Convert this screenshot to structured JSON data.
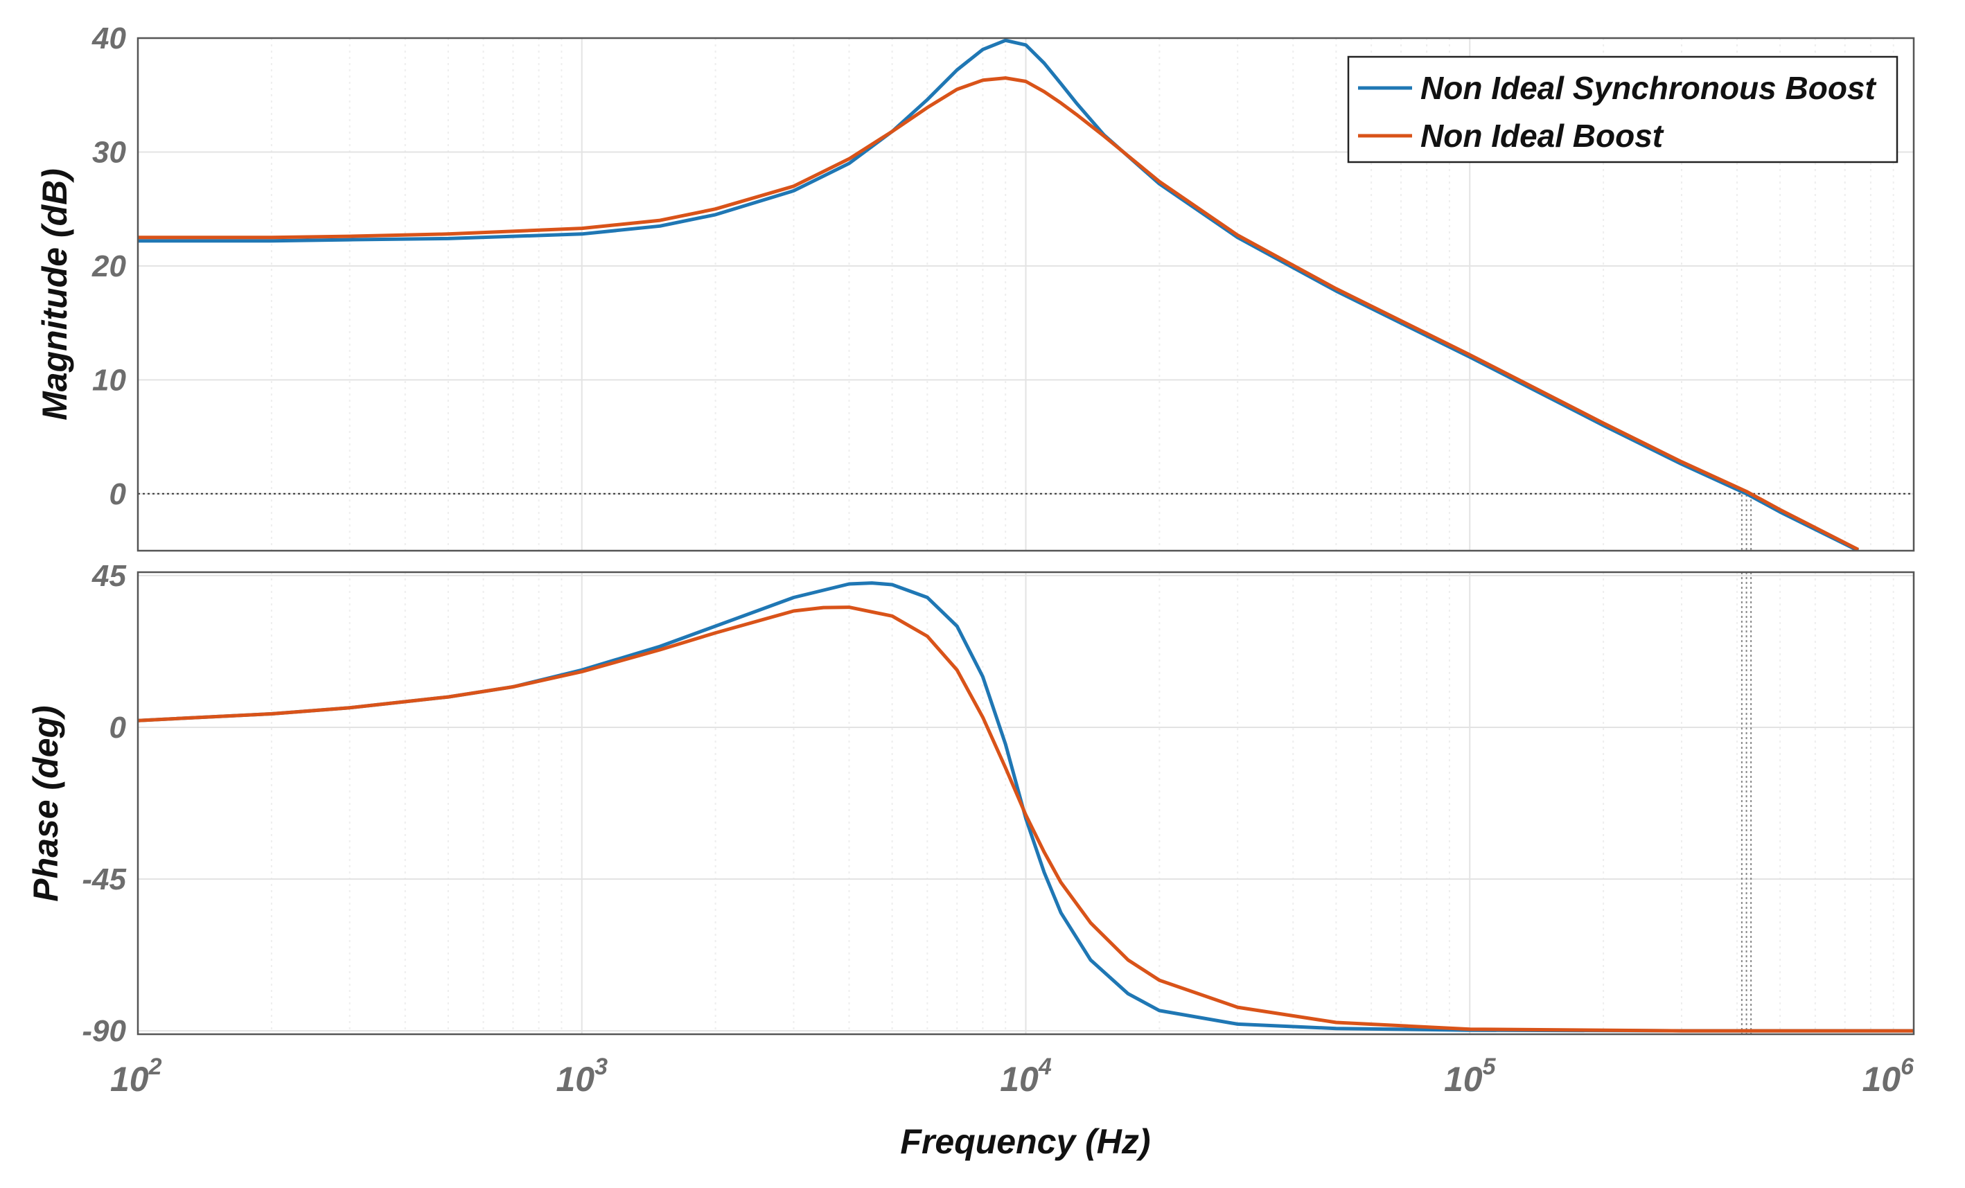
{
  "chart_data": [
    {
      "type": "line",
      "panel": "magnitude",
      "ylabel": "Magnitude (dB)",
      "xscale": "log",
      "xlim": [
        100,
        1000000
      ],
      "ylim": [
        -5,
        40
      ],
      "yticks": [
        0,
        10,
        20,
        30,
        40
      ],
      "ytick_labels": [
        "0",
        "10",
        "20",
        "30",
        "40"
      ],
      "grid": true,
      "reference_line_y": 0,
      "legend": {
        "placement": "top-right",
        "entries": [
          "Non Ideal Synchronous Boost",
          "Non Ideal Boost"
        ]
      },
      "series": [
        {
          "name": "Non Ideal Synchronous Boost",
          "color": "#1f77b4",
          "x": [
            100,
            200,
            300,
            500,
            1000,
            1500,
            2000,
            3000,
            4000,
            5000,
            6000,
            7000,
            8000,
            9000,
            10000,
            11000,
            12000,
            13000,
            15000,
            20000,
            30000,
            50000,
            100000,
            200000,
            300000,
            420000,
            500000,
            750000
          ],
          "y": [
            22.2,
            22.2,
            22.3,
            22.4,
            22.8,
            23.5,
            24.5,
            26.6,
            29.0,
            31.8,
            34.6,
            37.2,
            39.0,
            39.8,
            39.4,
            37.8,
            36.0,
            34.3,
            31.5,
            27.2,
            22.5,
            17.8,
            12.0,
            6.0,
            2.6,
            0.0,
            -1.6,
            -5.0
          ]
        },
        {
          "name": "Non Ideal Boost",
          "color": "#d95319",
          "x": [
            100,
            200,
            300,
            500,
            1000,
            1500,
            2000,
            3000,
            4000,
            5000,
            6000,
            7000,
            8000,
            9000,
            10000,
            11000,
            12000,
            13000,
            15000,
            20000,
            30000,
            50000,
            100000,
            200000,
            300000,
            420000,
            500000,
            750000
          ],
          "y": [
            22.5,
            22.5,
            22.6,
            22.8,
            23.3,
            24.0,
            25.0,
            27.0,
            29.4,
            31.8,
            33.9,
            35.5,
            36.3,
            36.5,
            36.2,
            35.3,
            34.3,
            33.3,
            31.4,
            27.4,
            22.7,
            18.0,
            12.2,
            6.2,
            2.8,
            0.2,
            -1.4,
            -4.9
          ]
        }
      ]
    },
    {
      "type": "line",
      "panel": "phase",
      "ylabel": "Phase (deg)",
      "xlabel": "Frequency  (Hz)",
      "xscale": "log",
      "xlim": [
        100,
        1000000
      ],
      "ylim": [
        -91,
        46
      ],
      "yticks": [
        -90,
        -45,
        0,
        45
      ],
      "ytick_labels": [
        "-90",
        "-45",
        "0",
        "45"
      ],
      "xtick_labels": [
        {
          "base": "10",
          "exp": "2",
          "value": 100
        },
        {
          "base": "10",
          "exp": "3",
          "value": 1000
        },
        {
          "base": "10",
          "exp": "4",
          "value": 10000
        },
        {
          "base": "10",
          "exp": "5",
          "value": 100000
        },
        {
          "base": "10",
          "exp": "6",
          "value": 1000000
        }
      ],
      "grid": true,
      "series": [
        {
          "name": "Non Ideal Synchronous Boost",
          "color": "#1f77b4",
          "x": [
            100,
            200,
            300,
            500,
            700,
            1000,
            1500,
            2000,
            3000,
            4000,
            4500,
            5000,
            6000,
            7000,
            8000,
            9000,
            10000,
            11000,
            12000,
            14000,
            17000,
            20000,
            30000,
            50000,
            100000,
            300000,
            1000000
          ],
          "y": [
            2,
            4,
            5.8,
            9,
            12,
            17,
            24,
            30,
            38.5,
            42.5,
            42.8,
            42.3,
            38.5,
            30,
            15,
            -5,
            -27,
            -43,
            -55,
            -69,
            -79,
            -84,
            -88,
            -89.3,
            -89.8,
            -90,
            -90
          ]
        },
        {
          "name": "Non Ideal Boost",
          "color": "#d95319",
          "x": [
            100,
            200,
            300,
            500,
            700,
            1000,
            1500,
            2000,
            3000,
            3500,
            4000,
            5000,
            6000,
            7000,
            8000,
            9000,
            10000,
            11000,
            12000,
            14000,
            17000,
            20000,
            30000,
            50000,
            100000,
            300000,
            1000000
          ],
          "y": [
            2,
            4,
            5.8,
            9,
            12,
            16.5,
            23,
            28,
            34.5,
            35.5,
            35.6,
            33,
            27,
            17,
            3,
            -12,
            -26,
            -37,
            -46,
            -58,
            -69,
            -75,
            -83,
            -87.5,
            -89.5,
            -90,
            -90
          ]
        }
      ],
      "margin_lines_x": [
        410000,
        420000,
        430000
      ]
    }
  ]
}
